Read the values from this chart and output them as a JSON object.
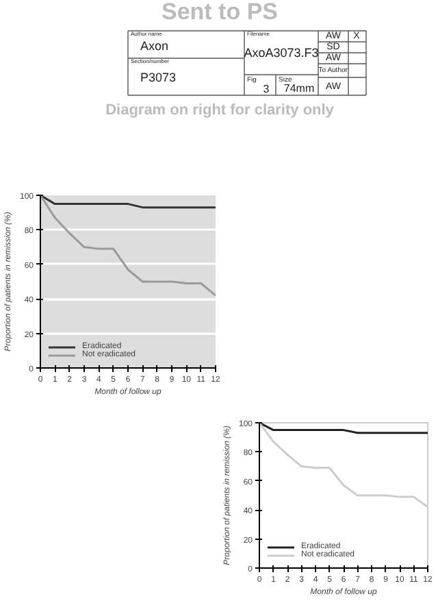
{
  "chart_data": [
    {
      "type": "other",
      "title": "Sent to PS",
      "annotations": [
        "Author name",
        "Axon",
        "Section/number",
        "P3073",
        "Filename",
        "AxoA3073.F3",
        "Fig",
        "3",
        "Size",
        "74mm",
        "AW",
        "X",
        "SD",
        "AW",
        "To Author",
        "AW",
        "Diagram on right for clarity only"
      ]
    },
    {
      "type": "line",
      "x": [
        0,
        1,
        2,
        3,
        4,
        5,
        6,
        7,
        8,
        9,
        10,
        11,
        12
      ],
      "xlim": [
        0,
        12
      ],
      "xticks": [
        0,
        1,
        2,
        3,
        4,
        5,
        6,
        7,
        8,
        9,
        10,
        11,
        12
      ],
      "ylim": [
        0,
        100
      ],
      "yticks": [
        0,
        20,
        40,
        60,
        80,
        100
      ],
      "xlabel": "Month of follow up",
      "ylabel": "Proportion of patients in remission (%)",
      "grid": "y",
      "legend": "bottom left",
      "series": [
        {
          "name": "Eradicated",
          "color": "#333333",
          "values": [
            100,
            95,
            95,
            95,
            95,
            95,
            95,
            93,
            93,
            93,
            93,
            93,
            93
          ]
        },
        {
          "name": "Not eradicated",
          "color": "#999999",
          "values": [
            100,
            87,
            78,
            70,
            69,
            69,
            57,
            50,
            50,
            50,
            49,
            49,
            42
          ]
        }
      ]
    },
    {
      "type": "line",
      "x": [
        0,
        1,
        2,
        3,
        4,
        5,
        6,
        7,
        8,
        9,
        10,
        11,
        12
      ],
      "xlim": [
        0,
        12
      ],
      "xticks": [
        0,
        1,
        2,
        3,
        4,
        5,
        6,
        7,
        8,
        9,
        10,
        11,
        12
      ],
      "ylim": [
        0,
        100
      ],
      "yticks": [
        0,
        20,
        40,
        60,
        80,
        100
      ],
      "xlabel": "Month of follow up",
      "ylabel": "Proportion of patients in remission (%)",
      "legend": "bottom left",
      "series": [
        {
          "name": "Eradicated",
          "color": "#222222",
          "values": [
            100,
            95,
            95,
            95,
            95,
            95,
            95,
            93,
            93,
            93,
            93,
            93,
            93
          ]
        },
        {
          "name": "Not eradicated",
          "color": "#cccccc",
          "values": [
            100,
            87,
            78,
            70,
            69,
            69,
            57,
            50,
            50,
            50,
            49,
            49,
            42
          ]
        }
      ]
    }
  ]
}
